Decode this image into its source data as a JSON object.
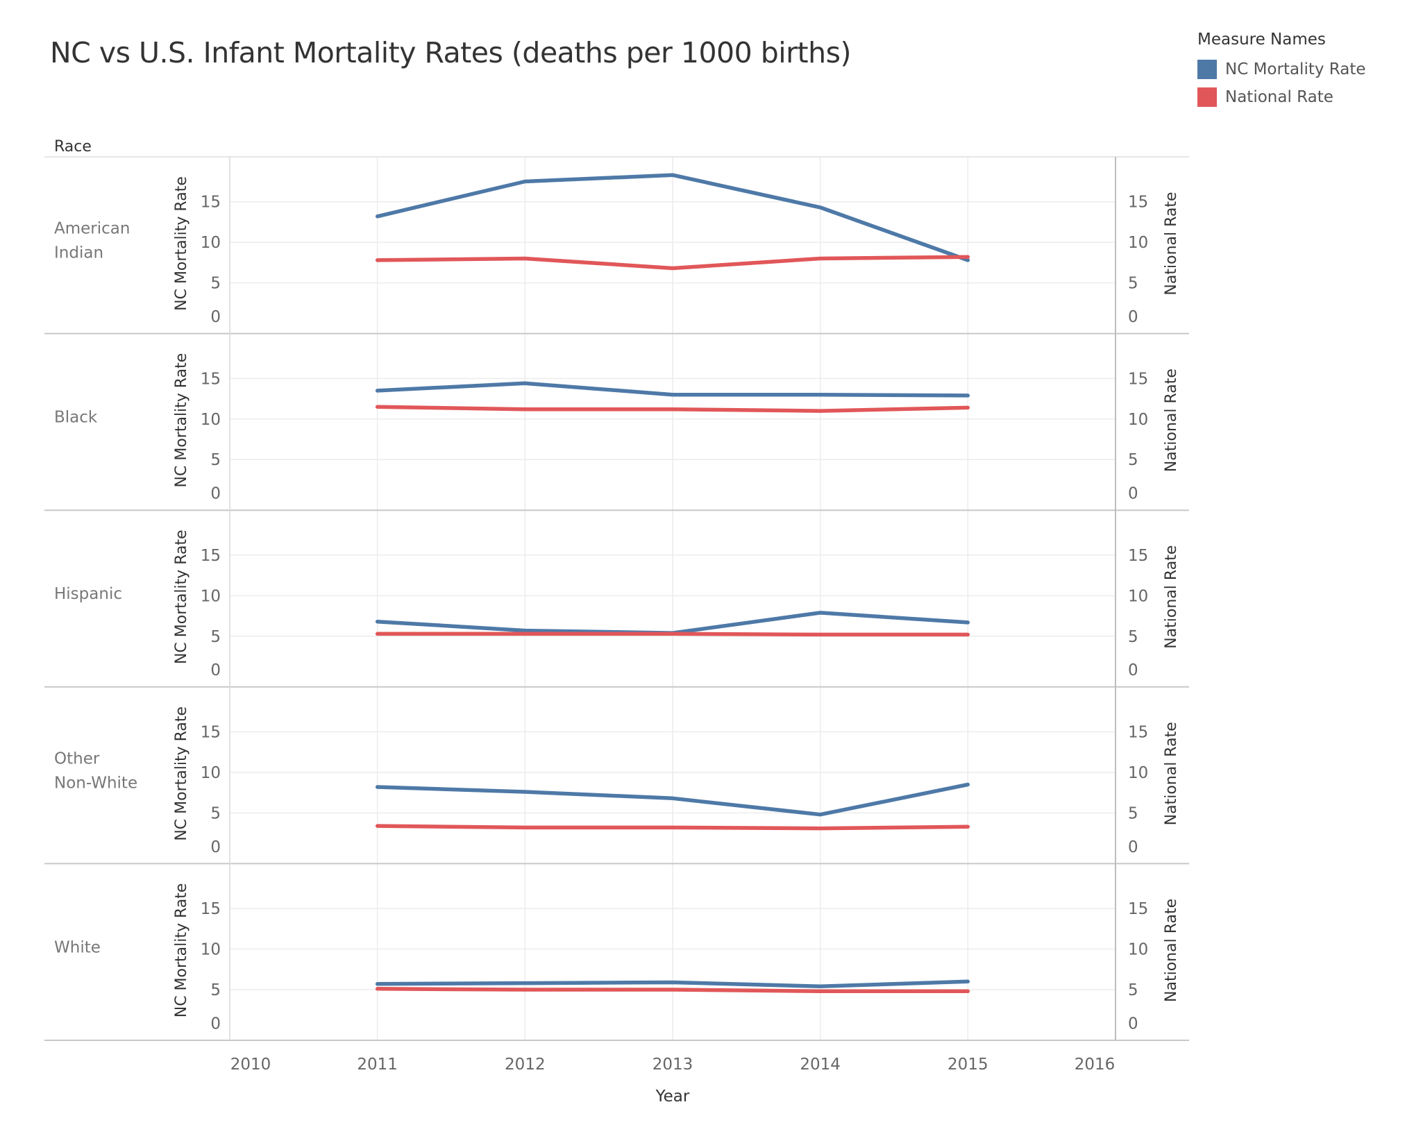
{
  "title": "NC vs U.S. Infant Mortality Rates (deaths per 1000 births)",
  "legend": {
    "title": "Measure Names",
    "items": [
      {
        "label": "NC Mortality Rate",
        "color": "#4e79a7"
      },
      {
        "label": "National Rate",
        "color": "#e15759"
      }
    ]
  },
  "row_header": "Race",
  "chart_data": {
    "type": "line",
    "x": [
      2011,
      2012,
      2013,
      2014,
      2015
    ],
    "x_ticks": [
      "2010",
      "2011",
      "2012",
      "2013",
      "2014",
      "2015",
      "2016"
    ],
    "xlabel": "Year",
    "xlim": [
      2010,
      2016
    ],
    "ylim": [
      0,
      19
    ],
    "y_ticks": [
      "0",
      "5",
      "10",
      "15"
    ],
    "ylabel_left": "NC Mortality Rate",
    "ylabel_right": "National Rate",
    "grid": true,
    "panels": [
      {
        "label": [
          "American",
          "Indian"
        ],
        "series": [
          {
            "name": "NC Mortality Rate",
            "values": [
              13.2,
              17.5,
              18.3,
              14.3,
              7.8
            ]
          },
          {
            "name": "National Rate",
            "values": [
              7.8,
              8.0,
              6.8,
              8.0,
              8.2
            ]
          }
        ]
      },
      {
        "label": [
          "Black"
        ],
        "series": [
          {
            "name": "NC Mortality Rate",
            "values": [
              13.5,
              14.4,
              13.0,
              13.0,
              12.9
            ]
          },
          {
            "name": "National Rate",
            "values": [
              11.5,
              11.2,
              11.2,
              11.0,
              11.4
            ]
          }
        ]
      },
      {
        "label": [
          "Hispanic"
        ],
        "series": [
          {
            "name": "NC Mortality Rate",
            "values": [
              6.8,
              5.7,
              5.4,
              7.9,
              6.7
            ]
          },
          {
            "name": "National Rate",
            "values": [
              5.3,
              5.3,
              5.3,
              5.2,
              5.2
            ]
          }
        ]
      },
      {
        "label": [
          "Other",
          "Non-White"
        ],
        "series": [
          {
            "name": "NC Mortality Rate",
            "values": [
              8.2,
              7.6,
              6.8,
              4.8,
              8.5
            ]
          },
          {
            "name": "National Rate",
            "values": [
              3.4,
              3.2,
              3.2,
              3.1,
              3.3
            ]
          }
        ]
      },
      {
        "label": [
          "White"
        ],
        "series": [
          {
            "name": "NC Mortality Rate",
            "values": [
              5.7,
              5.8,
              5.9,
              5.4,
              6.0
            ]
          },
          {
            "name": "National Rate",
            "values": [
              5.1,
              5.0,
              5.0,
              4.8,
              4.8
            ]
          }
        ]
      }
    ]
  }
}
